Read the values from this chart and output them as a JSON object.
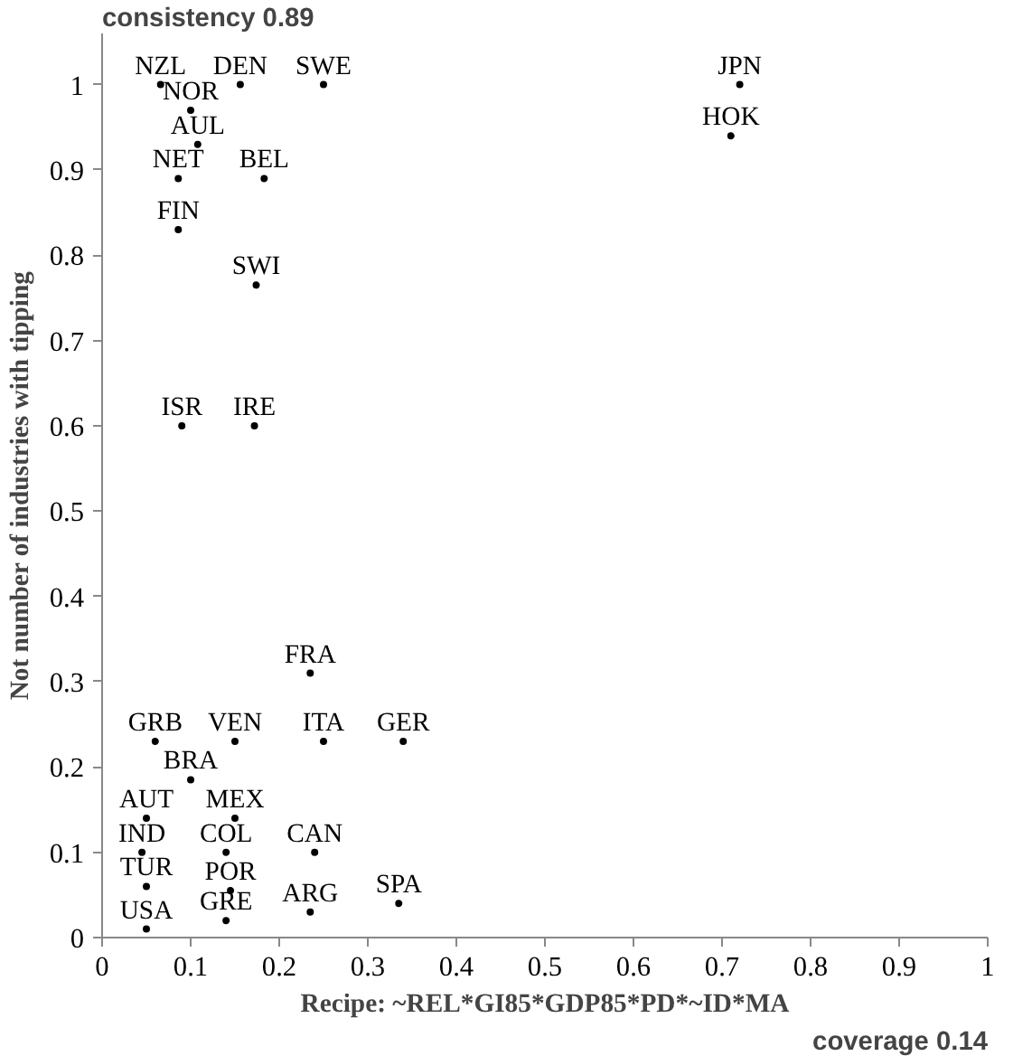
{
  "chart_data": {
    "type": "scatter",
    "xlabel": "Recipe: ~REL*GI85*GDP85*PD*~ID*MA",
    "ylabel": "Not number of industries with tipping",
    "annotations": [
      "consistency  0.89",
      "coverage 0.14"
    ],
    "xlim": [
      0,
      1
    ],
    "ylim": [
      0,
      1.06
    ],
    "xticks": [
      0,
      0.1,
      0.2,
      0.3,
      0.4,
      0.5,
      0.6,
      0.7,
      0.8,
      0.9,
      1
    ],
    "yticks": [
      0,
      0.1,
      0.2,
      0.3,
      0.4,
      0.5,
      0.6,
      0.7,
      0.8,
      0.9,
      1
    ],
    "grid": false,
    "marker": "circle",
    "series": [
      {
        "color": "#000000",
        "x": [
          0.066,
          0.156,
          0.25,
          0.1,
          0.108,
          0.086,
          0.183,
          0.086,
          0.174,
          0.09,
          0.172,
          0.72,
          0.71,
          0.235,
          0.06,
          0.15,
          0.25,
          0.34,
          0.1,
          0.05,
          0.15,
          0.045,
          0.14,
          0.24,
          0.05,
          0.145,
          0.05,
          0.14,
          0.235,
          0.335
        ],
        "values": [
          1.0,
          1.0,
          1.0,
          0.97,
          0.93,
          0.89,
          0.89,
          0.83,
          0.765,
          0.6,
          0.6,
          1.0,
          0.94,
          0.31,
          0.23,
          0.23,
          0.23,
          0.23,
          0.185,
          0.14,
          0.14,
          0.1,
          0.1,
          0.1,
          0.06,
          0.055,
          0.01,
          0.02,
          0.03,
          0.04
        ],
        "value_labels": [
          "NZL",
          "DEN",
          "SWE",
          "NOR",
          "AUL",
          "NET",
          "BEL",
          "FIN",
          "SWI",
          "ISR",
          "IRE",
          "JPN",
          "HOK",
          "FRA",
          "GRB",
          "VEN",
          "ITA",
          "GER",
          "BRA",
          "AUT",
          "MEX",
          "IND",
          "COL",
          "CAN",
          "TUR",
          "POR",
          "USA",
          "GRE",
          "ARG",
          "SPA"
        ]
      }
    ]
  }
}
